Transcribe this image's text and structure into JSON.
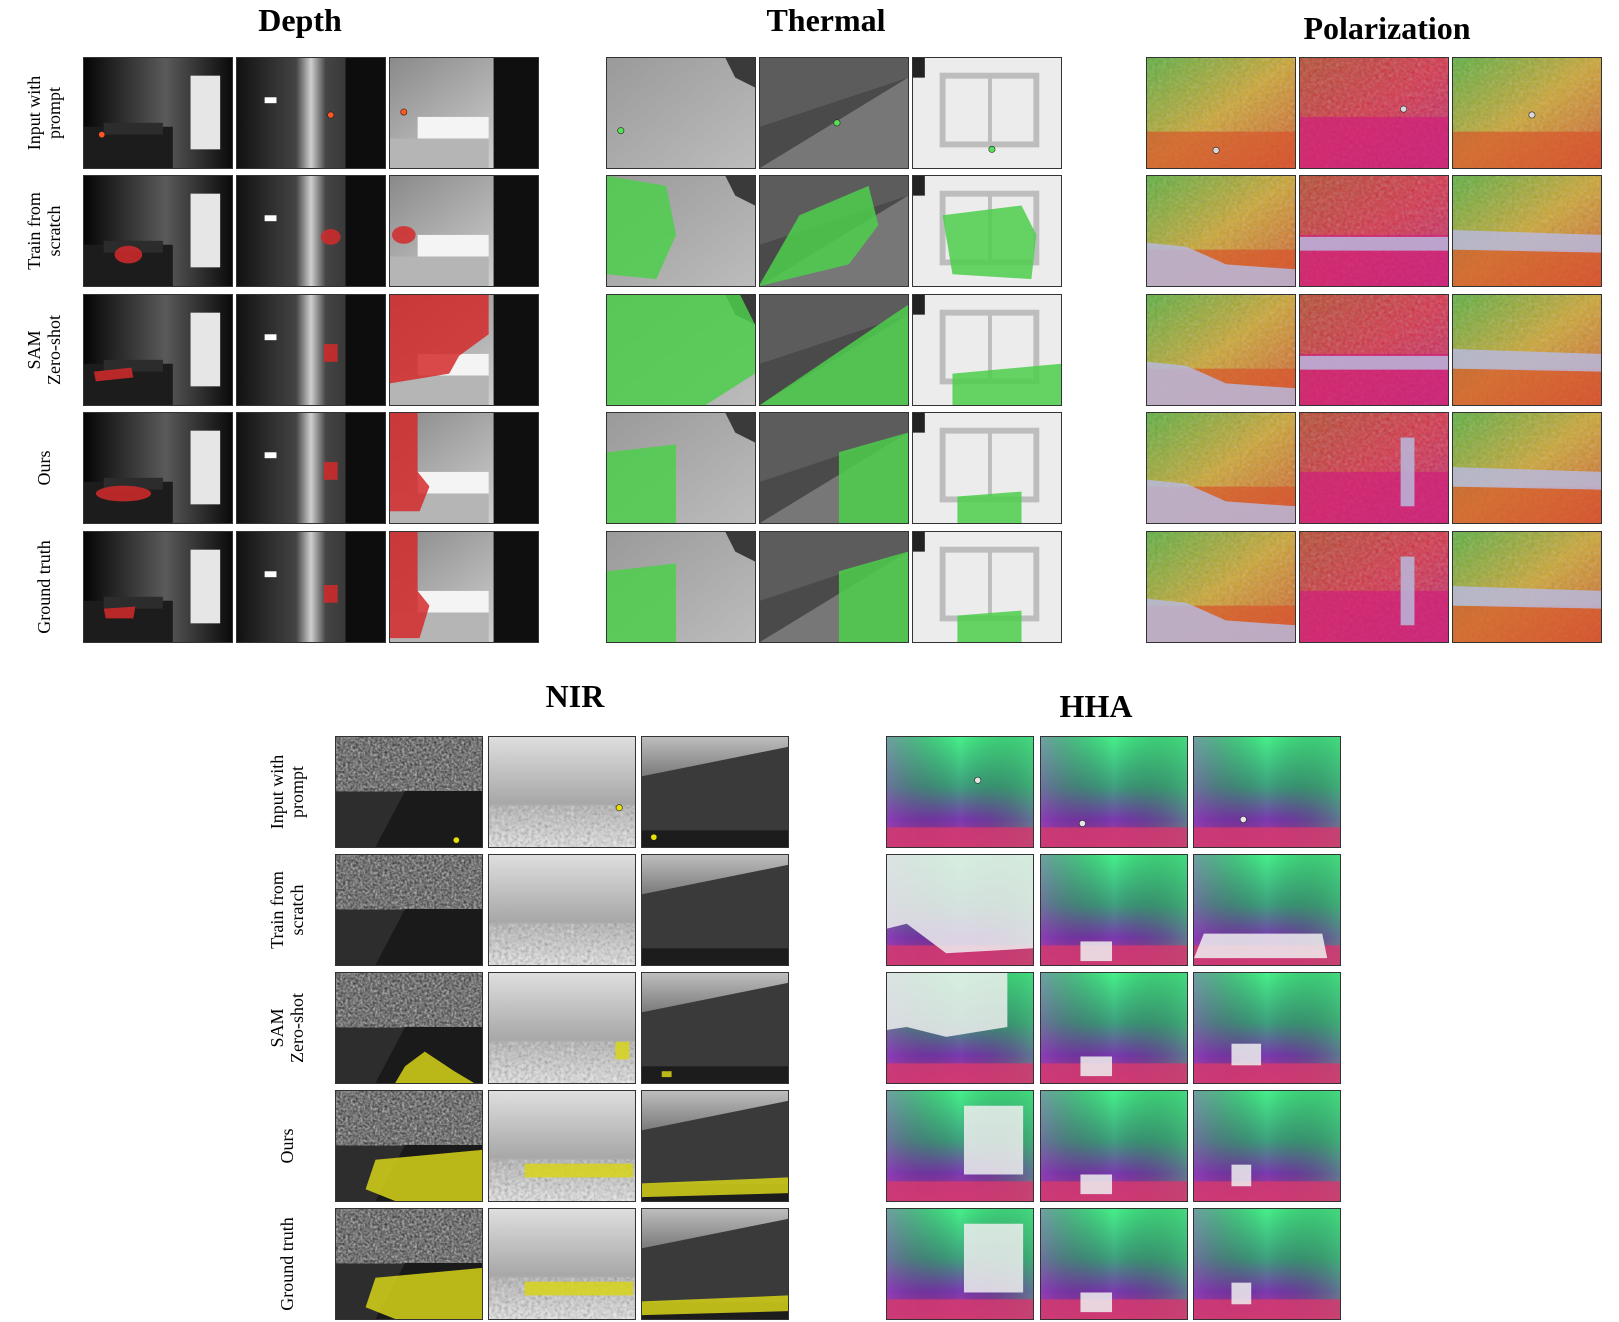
{
  "figure": {
    "row_labels": [
      "Input with\nprompt",
      "Train from\nscratch",
      "SAM\nZero-shot",
      "Ours",
      "Ground truth"
    ],
    "blocks": [
      {
        "title": "Depth",
        "style": "depth",
        "mask_color": "#d42a2a"
      },
      {
        "title": "Thermal",
        "style": "thermal",
        "mask_color": "#4ccf4c"
      },
      {
        "title": "Polarization",
        "style": "polar",
        "mask_color": "#b8b8dc"
      },
      {
        "title": "NIR",
        "style": "nir",
        "mask_color": "#d7d41a"
      },
      {
        "title": "HHA",
        "style": "hha",
        "mask_color": "#eeeeee"
      }
    ]
  }
}
